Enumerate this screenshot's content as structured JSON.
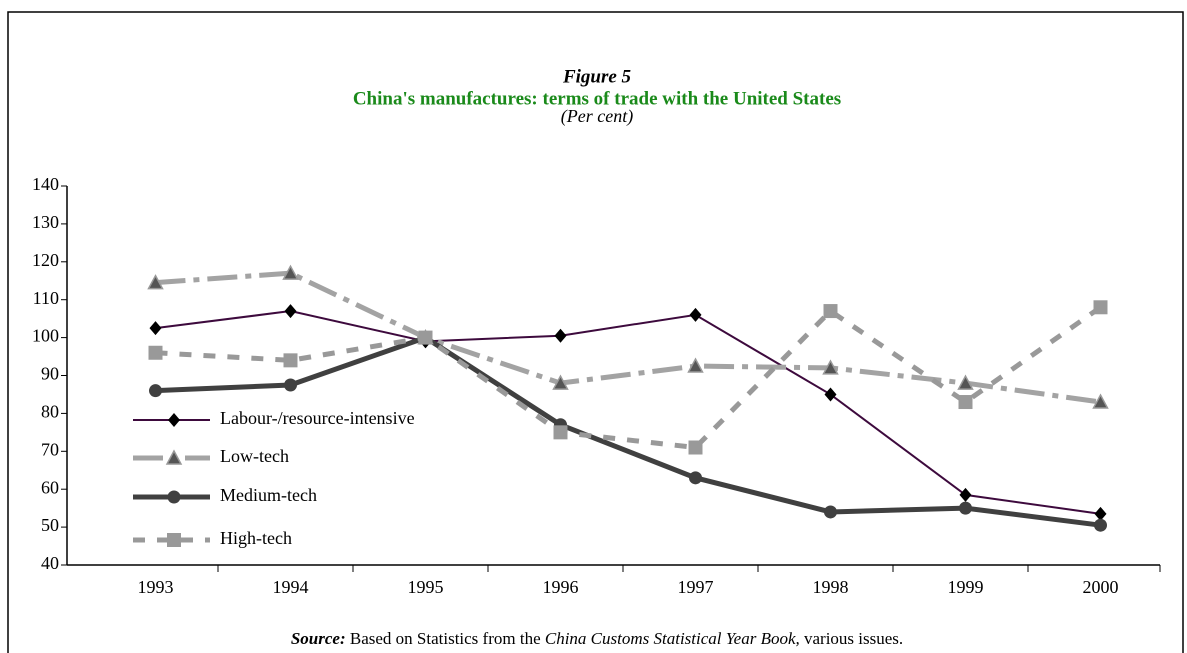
{
  "chart_data": {
    "type": "line",
    "figure_label": "Figure 5",
    "title": "China's manufactures: terms of trade with the United States",
    "subtitle": "(Per cent)",
    "categories": [
      "1993",
      "1994",
      "1995",
      "1996",
      "1997",
      "1998",
      "1999",
      "2000"
    ],
    "series": [
      {
        "name": "Labour-/resource-intensive",
        "color": "#3d0a3d",
        "marker": "diamond",
        "width": 2,
        "dash": "none",
        "values": [
          102.5,
          107,
          99,
          100.5,
          106,
          85,
          58.5,
          53.5
        ]
      },
      {
        "name": "Low-tech",
        "color": "#a3a3a3",
        "marker": "triangle",
        "width": 5,
        "dash": "30 8 6 8",
        "values": [
          114.5,
          117,
          100,
          88,
          92.5,
          92,
          88,
          83
        ]
      },
      {
        "name": "Medium-tech",
        "color": "#404040",
        "marker": "circle",
        "width": 5,
        "dash": "none",
        "values": [
          86,
          87.5,
          100,
          77,
          63,
          54,
          55,
          50.5
        ]
      },
      {
        "name": "High-tech",
        "color": "#999999",
        "marker": "square",
        "width": 5,
        "dash": "12 12",
        "values": [
          96,
          94,
          100,
          75,
          71,
          107,
          83,
          108
        ]
      }
    ],
    "ylim": [
      40,
      140
    ],
    "yticks": [
      40,
      50,
      60,
      70,
      80,
      90,
      100,
      110,
      120,
      130,
      140
    ],
    "source": {
      "label": "Source:",
      "text": "Based on Statistics from the",
      "book": "China Customs Statistical Year Book,",
      "tail": "various issues."
    }
  }
}
